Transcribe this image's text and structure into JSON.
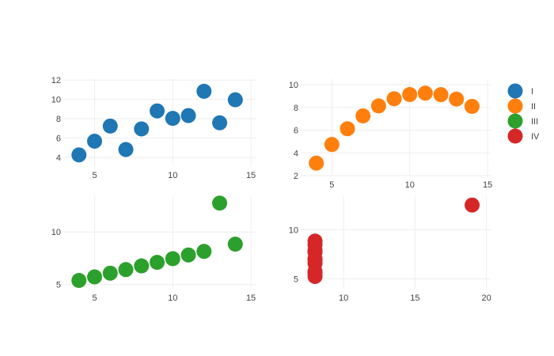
{
  "chart_data": {
    "type": "scatter",
    "legend": {
      "placement": "right",
      "entries": [
        {
          "name": "I",
          "color": "#1f77b4"
        },
        {
          "name": "II",
          "color": "#ff7f0e"
        },
        {
          "name": "III",
          "color": "#2ca02c"
        },
        {
          "name": "IV",
          "color": "#d62728"
        }
      ]
    },
    "grid": true,
    "subplots": [
      {
        "id": "I",
        "color": "#1f77b4",
        "x": [
          4,
          5,
          6,
          7,
          8,
          9,
          10,
          11,
          12,
          13,
          14
        ],
        "y": [
          4.26,
          5.68,
          7.24,
          4.82,
          6.95,
          8.81,
          8.04,
          8.33,
          10.84,
          7.58,
          9.96
        ],
        "xlim": [
          3,
          15.3
        ],
        "ylim": [
          3.1,
          12.1
        ],
        "xticks": [
          5,
          10,
          15
        ],
        "yticks": [
          4,
          6,
          8,
          10,
          12
        ]
      },
      {
        "id": "II",
        "color": "#ff7f0e",
        "x": [
          4,
          5,
          6,
          7,
          8,
          9,
          10,
          11,
          12,
          13,
          14
        ],
        "y": [
          3.1,
          4.74,
          6.13,
          7.26,
          8.14,
          8.77,
          9.14,
          9.26,
          9.13,
          8.74,
          8.1
        ],
        "xlim": [
          3,
          15.2
        ],
        "ylim": [
          2,
          10.5
        ],
        "xticks": [
          5,
          10,
          15
        ],
        "yticks": [
          2,
          4,
          6,
          8,
          10
        ]
      },
      {
        "id": "III",
        "color": "#2ca02c",
        "x": [
          4,
          5,
          6,
          7,
          8,
          9,
          10,
          11,
          12,
          13,
          14
        ],
        "y": [
          5.39,
          5.73,
          6.08,
          6.42,
          6.77,
          7.11,
          7.46,
          7.81,
          8.15,
          12.74,
          8.84
        ],
        "xlim": [
          3,
          15.3
        ],
        "ylim": [
          4.6,
          13.4
        ],
        "xticks": [
          5,
          10,
          15
        ],
        "yticks": [
          5,
          10
        ]
      },
      {
        "id": "IV",
        "color": "#d62728",
        "x": [
          8,
          8,
          8,
          8,
          8,
          8,
          8,
          19,
          8,
          8,
          8
        ],
        "y": [
          6.58,
          5.76,
          7.71,
          8.84,
          8.47,
          7.04,
          5.25,
          12.5,
          5.56,
          7.91,
          6.89
        ],
        "xlim": [
          7,
          20.3
        ],
        "ylim": [
          4,
          13.4
        ],
        "xticks": [
          10,
          15,
          20
        ],
        "yticks": [
          5,
          10
        ]
      }
    ]
  }
}
